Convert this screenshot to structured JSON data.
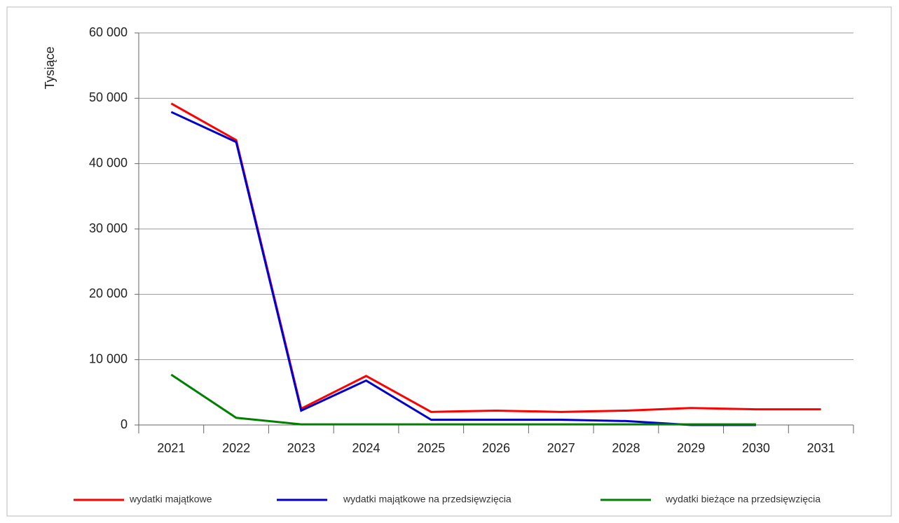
{
  "chart_data": {
    "type": "line",
    "y_label": "Tysiące",
    "categories": [
      "2021",
      "2022",
      "2023",
      "2024",
      "2025",
      "2026",
      "2027",
      "2028",
      "2029",
      "2030",
      "2031"
    ],
    "series": [
      {
        "name": "wydatki majątkowe",
        "color": "#ff0000",
        "values": [
          49200,
          43600,
          2500,
          7500,
          2000,
          2200,
          2000,
          2200,
          2600,
          2400,
          2400
        ]
      },
      {
        "name": "wydatki majątkowe na przedsięwzięcia",
        "color": "#0000cc",
        "values": [
          47900,
          43300,
          2200,
          6800,
          800,
          800,
          800,
          600,
          0,
          0,
          null
        ]
      },
      {
        "name": "wydatki bieżące na przedsięwzięcia",
        "color": "#008000",
        "values": [
          7700,
          1100,
          100,
          100,
          100,
          100,
          100,
          100,
          100,
          100,
          null
        ]
      }
    ],
    "ylim": [
      0,
      60000
    ],
    "yticks": [
      0,
      {
        "value": 10000,
        "label": "10 000"
      },
      {
        "value": 20000,
        "label": "20 000"
      },
      {
        "value": 30000,
        "label": "30 000"
      },
      {
        "value": 40000,
        "label": "40 000"
      },
      {
        "value": 50000,
        "label": "50 000"
      },
      {
        "value": 60000,
        "label": "60 000"
      }
    ],
    "grid": true,
    "legend": "bottom"
  }
}
